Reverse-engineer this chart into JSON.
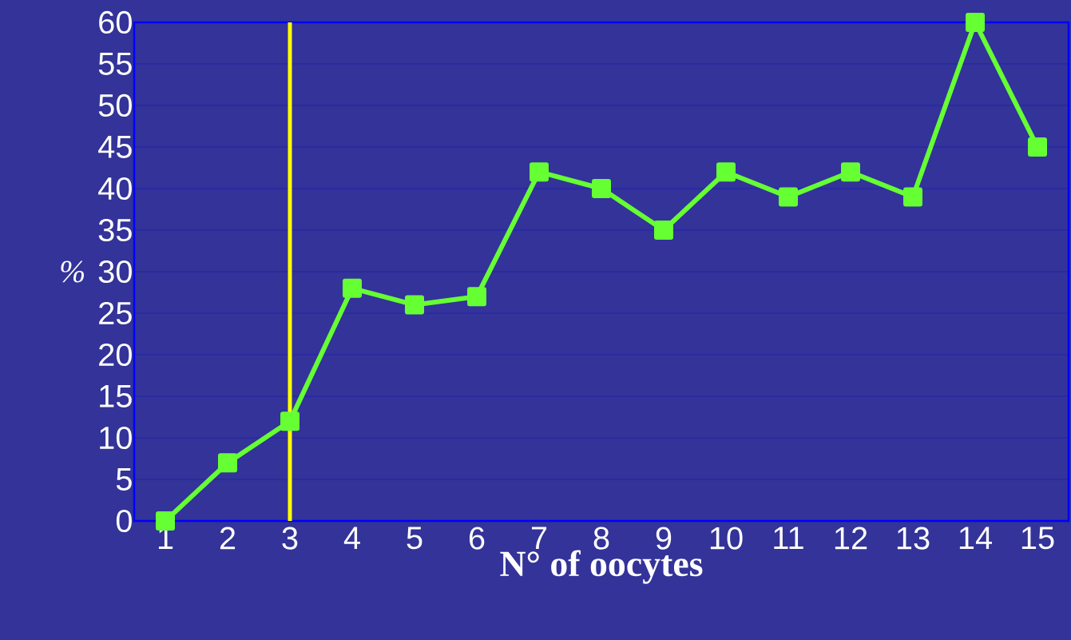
{
  "chart_data": {
    "type": "line",
    "xlabel": "N° of oocytes",
    "ylabel": "%",
    "x": [
      1,
      2,
      3,
      4,
      5,
      6,
      7,
      8,
      9,
      10,
      11,
      12,
      13,
      14,
      15
    ],
    "values": [
      0,
      7,
      12,
      28,
      26,
      27,
      42,
      40,
      35,
      42,
      39,
      42,
      39,
      60,
      45
    ],
    "color": "#66ff33",
    "marker": "square",
    "line_style": "solid",
    "xlim": [
      0.5,
      15.5
    ],
    "xticks": [
      1,
      2,
      3,
      4,
      5,
      6,
      7,
      8,
      9,
      10,
      11,
      12,
      13,
      14,
      15
    ],
    "ylim": [
      0,
      60
    ],
    "yticks": [
      0,
      5,
      10,
      15,
      20,
      25,
      30,
      35,
      40,
      45,
      50,
      55,
      60
    ],
    "grid": "y",
    "ref_lines": [
      {
        "axis": "x",
        "value": 3,
        "color": "#ffff00",
        "line_style": "solid"
      }
    ]
  }
}
